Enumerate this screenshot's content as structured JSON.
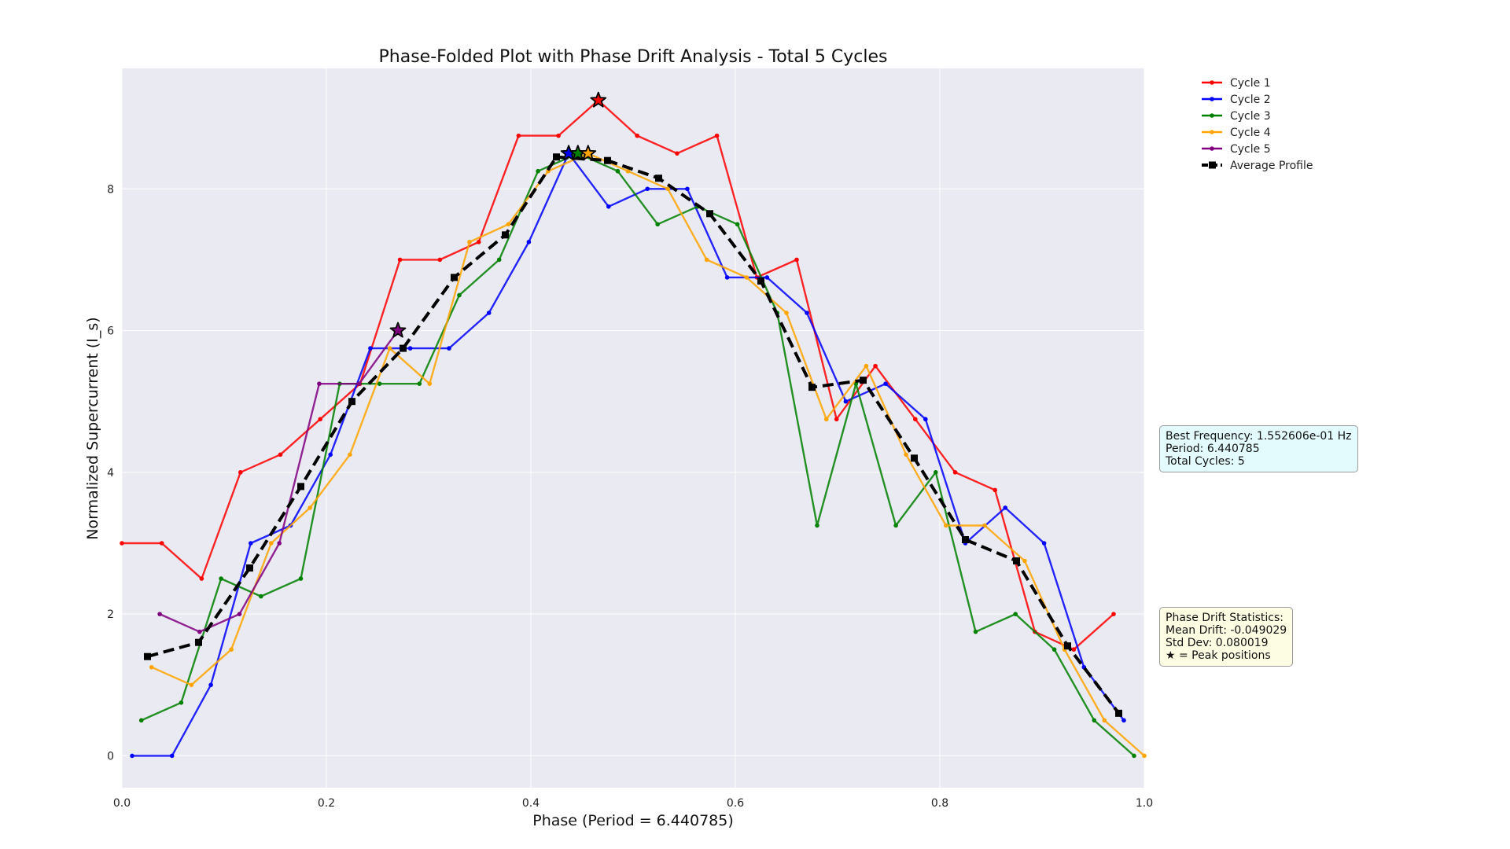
{
  "chart_data": {
    "type": "line",
    "title": "Phase-Folded Plot with Phase Drift Analysis - Total 5 Cycles",
    "xlabel": "Phase (Period = 6.440785)",
    "ylabel": "Normalized Supercurrent (I_s)",
    "xlim": [
      0.0,
      1.0
    ],
    "ylim": [
      -0.45,
      9.7
    ],
    "xticks": [
      0.0,
      0.2,
      0.4,
      0.6,
      0.8,
      1.0
    ],
    "xtick_labels": [
      "0.0",
      "0.2",
      "0.4",
      "0.6",
      "0.8",
      "1.0"
    ],
    "yticks": [
      0,
      2,
      4,
      6,
      8
    ],
    "ytick_labels": [
      "0",
      "2",
      "4",
      "6",
      "8"
    ],
    "grid": true,
    "legend_position": "top-right, outside plot",
    "series": [
      {
        "name": "Cycle 1",
        "color": "#ff0000",
        "x": [
          0.0,
          0.039,
          0.078,
          0.116,
          0.155,
          0.194,
          0.233,
          0.272,
          0.311,
          0.349,
          0.388,
          0.427,
          0.466,
          0.504,
          0.543,
          0.582,
          0.621,
          0.66,
          0.699,
          0.737,
          0.776,
          0.815,
          0.854,
          0.893,
          0.931,
          0.97
        ],
        "y": [
          3.0,
          3.0,
          2.5,
          4.0,
          4.25,
          4.75,
          5.25,
          7.0,
          7.0,
          7.25,
          8.75,
          8.75,
          9.25,
          8.75,
          8.5,
          8.75,
          6.75,
          7.0,
          4.75,
          5.5,
          4.75,
          4.0,
          3.75,
          1.75,
          1.5,
          2.0
        ]
      },
      {
        "name": "Cycle 2",
        "color": "#0000ff",
        "x": [
          0.01,
          0.049,
          0.087,
          0.126,
          0.165,
          0.204,
          0.243,
          0.282,
          0.32,
          0.359,
          0.398,
          0.437,
          0.476,
          0.514,
          0.553,
          0.592,
          0.631,
          0.67,
          0.708,
          0.747,
          0.786,
          0.825,
          0.864,
          0.902,
          0.941,
          0.98
        ],
        "y": [
          0.0,
          0.0,
          1.0,
          3.0,
          3.25,
          4.25,
          5.75,
          5.75,
          5.75,
          6.25,
          7.25,
          8.5,
          7.75,
          8.0,
          8.0,
          6.75,
          6.75,
          6.25,
          5.0,
          5.25,
          4.75,
          3.0,
          3.5,
          3.0,
          1.25,
          0.5
        ]
      },
      {
        "name": "Cycle 3",
        "color": "#008000",
        "x": [
          0.019,
          0.058,
          0.097,
          0.136,
          0.175,
          0.213,
          0.252,
          0.291,
          0.33,
          0.369,
          0.407,
          0.446,
          0.485,
          0.524,
          0.563,
          0.602,
          0.641,
          0.68,
          0.718,
          0.757,
          0.796,
          0.835,
          0.874,
          0.912,
          0.951,
          0.99
        ],
        "y": [
          0.5,
          0.75,
          2.5,
          2.25,
          2.5,
          5.25,
          5.25,
          5.25,
          6.5,
          7.0,
          8.25,
          8.5,
          8.25,
          7.5,
          7.75,
          7.5,
          6.25,
          3.25,
          5.25,
          3.25,
          4.0,
          1.75,
          2.0,
          1.5,
          0.5,
          0.0
        ]
      },
      {
        "name": "Cycle 4",
        "color": "#ffa500",
        "x": [
          0.029,
          0.068,
          0.107,
          0.146,
          0.184,
          0.223,
          0.262,
          0.301,
          0.34,
          0.378,
          0.417,
          0.456,
          0.495,
          0.534,
          0.572,
          0.611,
          0.65,
          0.689,
          0.728,
          0.767,
          0.806,
          0.844,
          0.883,
          0.922,
          0.961,
          1.0
        ],
        "y": [
          1.25,
          1.0,
          1.5,
          3.0,
          3.5,
          4.25,
          5.75,
          5.25,
          7.25,
          7.5,
          8.25,
          8.5,
          8.25,
          8.0,
          7.0,
          6.75,
          6.25,
          4.75,
          5.5,
          4.25,
          3.25,
          3.25,
          2.75,
          1.5,
          0.5,
          0.0
        ]
      },
      {
        "name": "Cycle 5",
        "color": "#800080",
        "x": [
          0.037,
          0.076,
          0.115,
          0.154,
          0.193,
          0.232,
          0.27
        ],
        "y": [
          2.0,
          1.75,
          2.0,
          3.0,
          5.25,
          5.25,
          6.0
        ]
      },
      {
        "name": "Average Profile",
        "color": "#000000",
        "dashed": true,
        "x": [
          0.025,
          0.075,
          0.125,
          0.175,
          0.225,
          0.275,
          0.325,
          0.375,
          0.425,
          0.475,
          0.525,
          0.575,
          0.625,
          0.675,
          0.725,
          0.775,
          0.825,
          0.875,
          0.925,
          0.975
        ],
        "y": [
          1.4,
          1.6,
          2.65,
          3.8,
          5.0,
          5.75,
          6.75,
          7.35,
          8.45,
          8.4,
          8.15,
          7.65,
          6.7,
          5.2,
          5.3,
          4.2,
          3.05,
          2.75,
          1.55,
          0.6
        ]
      }
    ],
    "peak_markers": [
      {
        "series": "Cycle 1",
        "x": 0.466,
        "y": 9.25
      },
      {
        "series": "Cycle 2",
        "x": 0.437,
        "y": 8.5
      },
      {
        "series": "Cycle 3",
        "x": 0.446,
        "y": 8.5
      },
      {
        "series": "Cycle 4",
        "x": 0.456,
        "y": 8.5
      },
      {
        "series": "Cycle 5",
        "x": 0.27,
        "y": 6.0
      }
    ]
  },
  "info_boxes": {
    "frequency": {
      "line1": "Best Frequency: 1.552606e-01 Hz",
      "line2": "Period: 6.440785",
      "line3": "Total Cycles: 5"
    },
    "drift": {
      "line1": "Phase Drift Statistics:",
      "line2": "Mean Drift: -0.049029",
      "line3": "Std Dev: 0.080019",
      "line4": "★ = Peak positions"
    }
  }
}
